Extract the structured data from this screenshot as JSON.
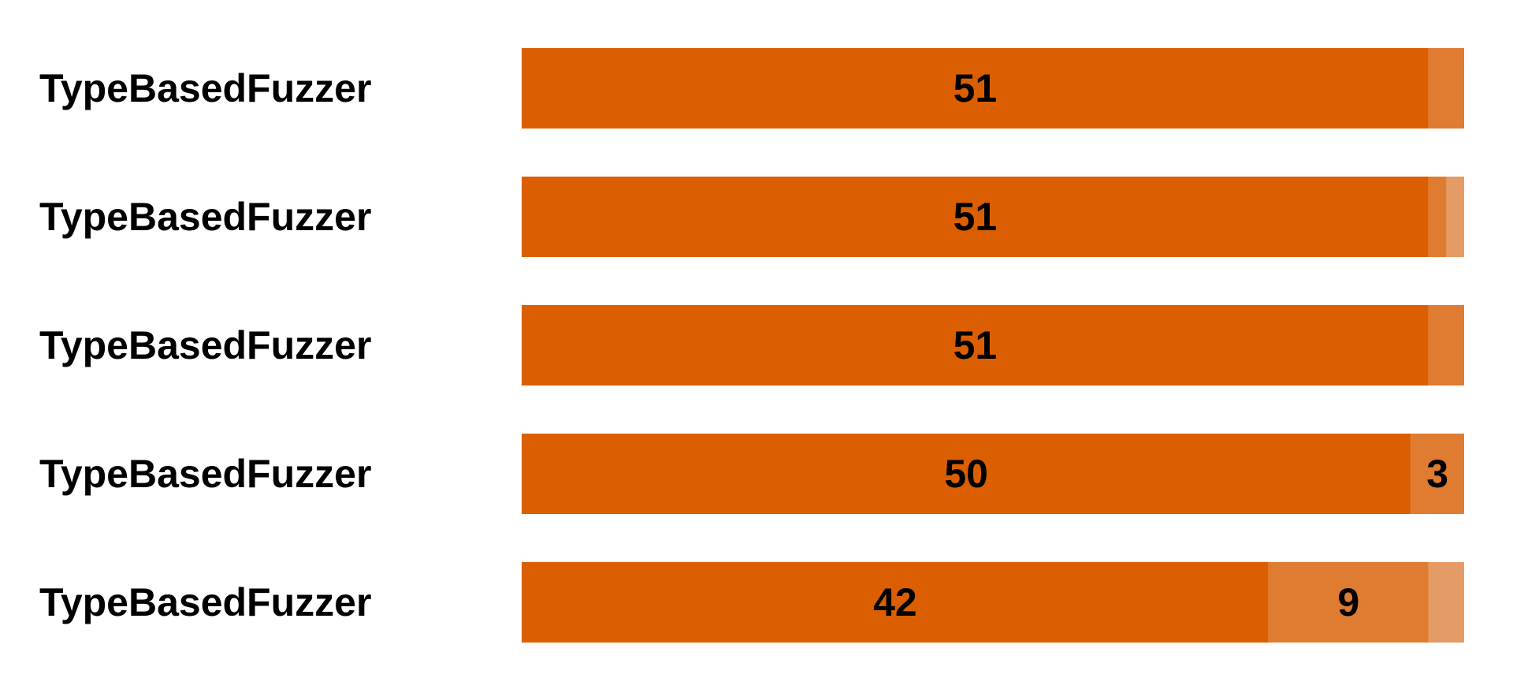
{
  "chart_data": {
    "type": "bar",
    "orientation": "horizontal",
    "stacked": true,
    "categories": [
      "TypeBasedFuzzer",
      "TypeBasedFuzzer",
      "TypeBasedFuzzer",
      "TypeBasedFuzzer",
      "TypeBasedFuzzer"
    ],
    "series": [
      {
        "values": [
          51,
          51,
          51,
          50,
          42
        ],
        "color": "#db5f00"
      },
      {
        "values": [
          2,
          1,
          2,
          3,
          9
        ],
        "color": "#e07b32"
      },
      {
        "values": [
          0,
          1,
          0,
          0,
          2
        ],
        "color": "#e49b66"
      }
    ],
    "value_labels": [
      [
        "51",
        "",
        ""
      ],
      [
        "51",
        "",
        ""
      ],
      [
        "51",
        "",
        ""
      ],
      [
        "50",
        "3",
        ""
      ],
      [
        "42",
        "9",
        ""
      ]
    ],
    "xlim": [
      0,
      53
    ],
    "grid": false,
    "legend": false
  }
}
